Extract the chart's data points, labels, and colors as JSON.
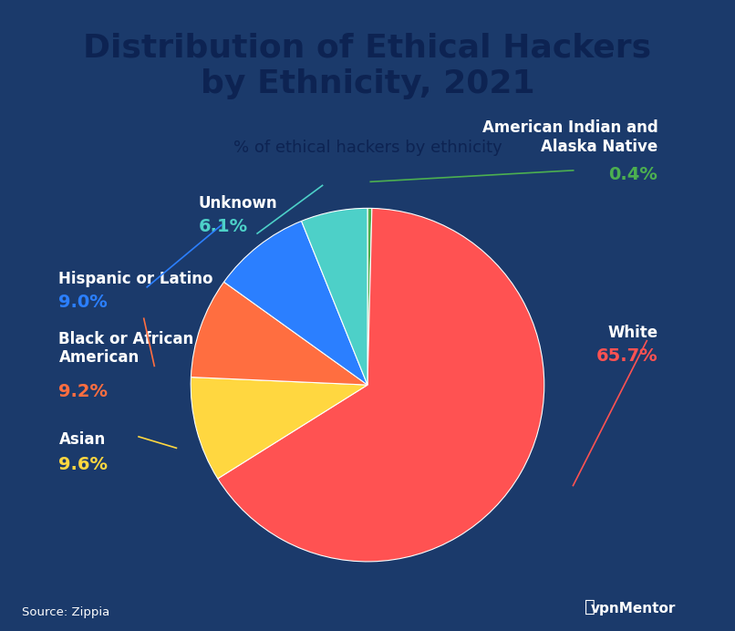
{
  "title": "Distribution of Ethical Hackers\nby Ethnicity, 2021",
  "subtitle": "% of ethical hackers by ethnicity",
  "source": "Source: Zippia",
  "labels": [
    "White",
    "Asian",
    "Black or African\nAmerican",
    "Hispanic or Latino",
    "Unknown",
    "American Indian and\nAlaska Native"
  ],
  "values": [
    65.7,
    9.6,
    9.2,
    9.0,
    6.1,
    0.4
  ],
  "pct_labels": [
    "65.7%",
    "9.6%",
    "9.2%",
    "9.0%",
    "6.1%",
    "0.4%"
  ],
  "colors": [
    "#FF5252",
    "#FFD740",
    "#FF6E40",
    "#2B7FFF",
    "#4DD0C8",
    "#4CAF50"
  ],
  "line_colors": [
    "#FF5252",
    "#FFD740",
    "#FF6E40",
    "#2B7FFF",
    "#4DD0C8",
    "#4CAF50"
  ],
  "background_dark": "#1B3A6B",
  "background_light": "#D6E8F5",
  "text_color_dark": "#0D2352",
  "text_color_white": "#FFFFFF",
  "title_fontsize": 26,
  "subtitle_fontsize": 13,
  "label_fontsize": 12,
  "pct_fontsize": 14
}
